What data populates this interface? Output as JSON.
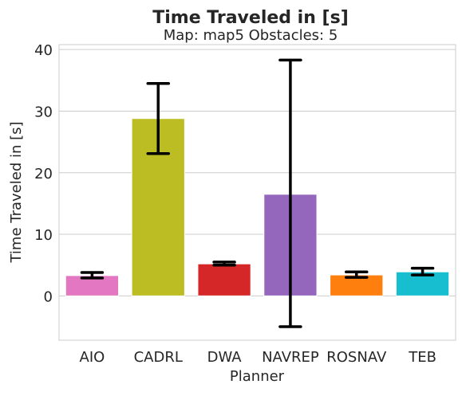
{
  "chart_data": {
    "type": "bar",
    "title": "Time Traveled in [s]",
    "subtitle": "Map: map5 Obstacles: 5",
    "xlabel": "Planner",
    "ylabel": "Time Traveled in [s]",
    "ylim": [
      -7.2,
      40.8
    ],
    "yticks": [
      0,
      10,
      20,
      30,
      40
    ],
    "grid": "horizontal",
    "categories": [
      "AIO",
      "CADRL",
      "DWA",
      "NAVREP",
      "ROSNAV",
      "TEB"
    ],
    "values": [
      3.3,
      28.8,
      5.2,
      16.5,
      3.4,
      3.9
    ],
    "error_low": [
      2.9,
      23.1,
      5.0,
      -5.0,
      3.0,
      3.4
    ],
    "error_high": [
      3.8,
      34.5,
      5.5,
      38.3,
      3.9,
      4.5
    ],
    "colors": [
      "#e377c2",
      "#bcbd22",
      "#d62728",
      "#9467bd",
      "#ff7f0e",
      "#17becf"
    ]
  }
}
